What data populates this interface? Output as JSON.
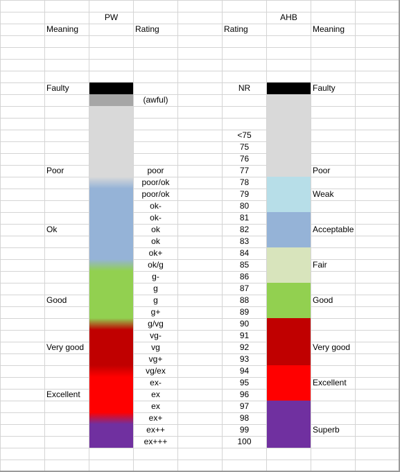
{
  "headers": {
    "pw": "PW",
    "ahb": "AHB",
    "pw_meaning": "Meaning",
    "pw_rating": "Rating",
    "ahb_rating": "Rating",
    "ahb_meaning": "Meaning"
  },
  "pw_meanings": [
    "Faulty",
    "Poor",
    "Ok",
    "Good",
    "Very good",
    "Excellent"
  ],
  "pw_ratings": [
    "(awful)",
    "poor",
    "poor/ok",
    "poor/ok",
    "ok-",
    "ok-",
    "ok",
    "ok",
    "ok+",
    "ok/g",
    "g-",
    "g",
    "g",
    "g+",
    "g/vg",
    "vg-",
    "vg",
    "vg+",
    "vg/ex",
    "ex-",
    "ex",
    "ex",
    "ex+",
    "ex++",
    "ex+++"
  ],
  "scores": [
    "NR",
    "<75",
    "75",
    "76",
    "77",
    "78",
    "79",
    "80",
    "81",
    "82",
    "83",
    "84",
    "85",
    "86",
    "87",
    "88",
    "89",
    "90",
    "91",
    "92",
    "93",
    "94",
    "95",
    "96",
    "97",
    "98",
    "99",
    "100"
  ],
  "ahb_meanings": [
    "Faulty",
    "Poor",
    "Weak",
    "Acceptable",
    "Fair",
    "Good",
    "Very good",
    "Excellent",
    "Superb"
  ],
  "colors": {
    "black": "#000000",
    "awful_gray": "#a6a6a6",
    "poor_gray": "#d9d9d9",
    "ok_blue": "#95b3d7",
    "weak_blue": "#b7dee8",
    "fair_green": "#d8e4bc",
    "good_green": "#92d050",
    "very_good_red": "#c00000",
    "excellent_red": "#ff0000",
    "superb_purple": "#7030a0"
  }
}
